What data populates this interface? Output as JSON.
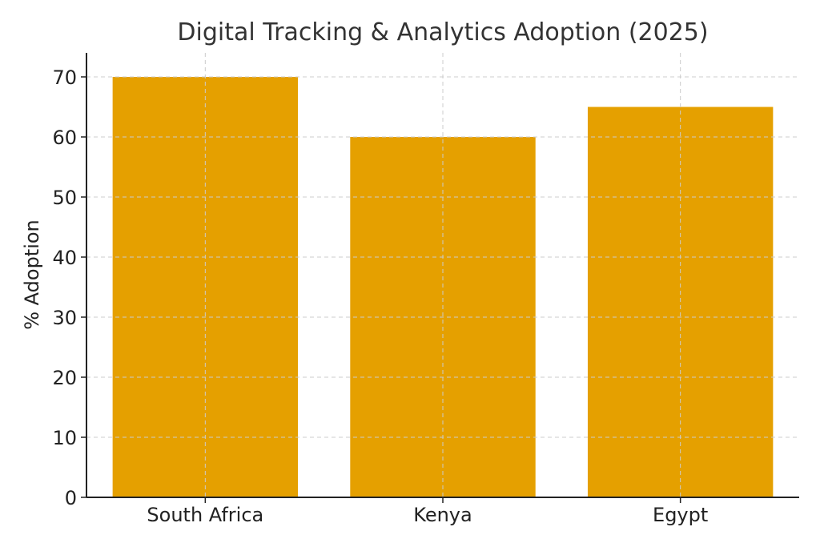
{
  "chart_data": {
    "type": "bar",
    "title": "Digital Tracking & Analytics Adoption (2025)",
    "xlabel": "",
    "ylabel": "% Adoption",
    "categories": [
      "South Africa",
      "Kenya",
      "Egypt"
    ],
    "values": [
      70,
      60,
      65
    ],
    "ylim": [
      0,
      74
    ],
    "yticks": [
      0,
      10,
      20,
      30,
      40,
      50,
      60,
      70
    ],
    "grid": true,
    "bar_color": "#E5A000"
  }
}
